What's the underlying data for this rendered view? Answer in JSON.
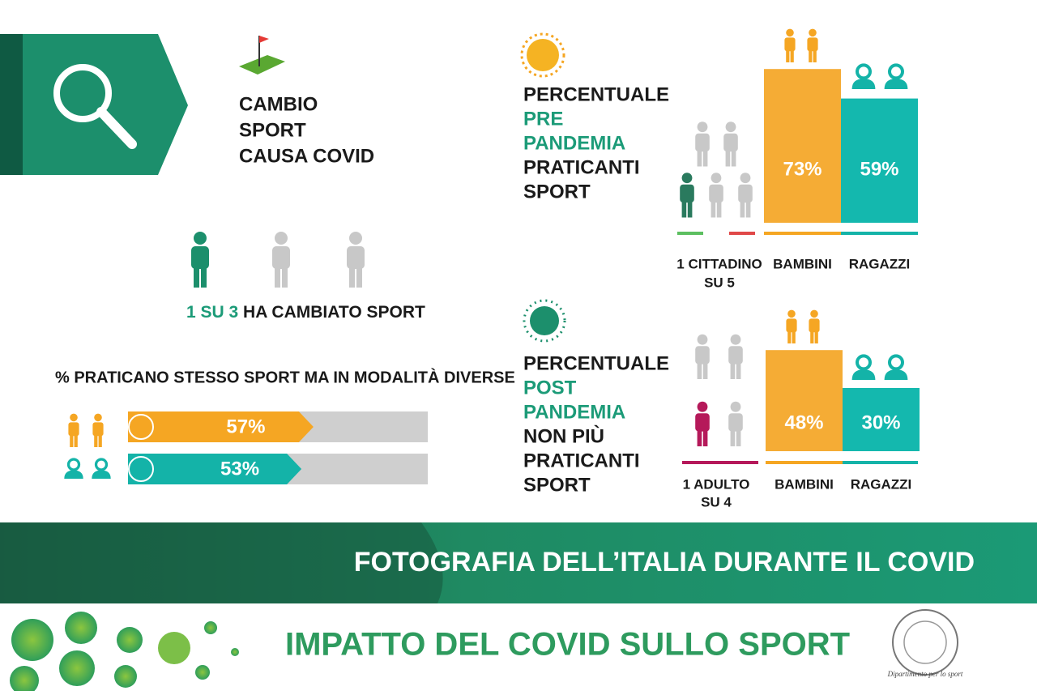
{
  "change": {
    "title": [
      "CAMBIO",
      "SPORT",
      "CAUSA COVID"
    ],
    "ratio": "1 SU 3",
    "ratio_caption": "HA CAMBIATO SPORT"
  },
  "same_sport": {
    "title": "% PRATICANO STESSO SPORT MA IN MODALITÀ DIVERSE",
    "bars": [
      {
        "value": 57,
        "value_label": "57%",
        "color": "#f5a623"
      },
      {
        "value": 53,
        "value_label": "53%",
        "color": "#14b3a8"
      }
    ]
  },
  "pre_pandemic": {
    "text": [
      "PERCENTUALE",
      "PRE",
      "PANDEMIA",
      "PRATICANTI",
      "SPORT"
    ],
    "people_caption": [
      "1 CITTADINO",
      "SU 5"
    ],
    "bars": [
      {
        "label": "BAMBINI",
        "value": 73,
        "value_label": "73%",
        "color": "#f5ac35"
      },
      {
        "label": "RAGAZZI",
        "value": 59,
        "value_label": "59%",
        "color": "#14b8ae"
      }
    ]
  },
  "post_pandemic": {
    "text": [
      "PERCENTUALE",
      "POST",
      "PANDEMIA",
      "NON PIÙ",
      "PRATICANTI",
      "SPORT"
    ],
    "people_caption": [
      "1 ADULTO",
      "SU 4"
    ],
    "bars": [
      {
        "label": "BAMBINI",
        "value": 48,
        "value_label": "48%",
        "color": "#f5ac35"
      },
      {
        "label": "RAGAZZI",
        "value": 30,
        "value_label": "30%",
        "color": "#14b8ae"
      }
    ]
  },
  "banner": "FOTOGRAFIA DELL’ITALIA DURANTE IL COVID",
  "footer_title": "IMPATTO DEL COVID SULLO SPORT",
  "logo_caption": "Dipartimento per lo sport"
}
